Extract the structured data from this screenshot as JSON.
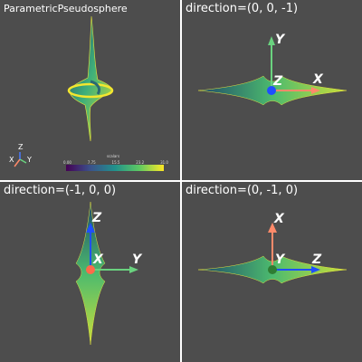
{
  "viewports": [
    {
      "title": "ParametricPseudosphere"
    },
    {
      "title": "direction=(0, 0, -1)"
    },
    {
      "title": "direction=(-1, 0, 0)"
    },
    {
      "title": "direction=(0, -1, 0)"
    }
  ],
  "orientation_marker": {
    "x": "X",
    "y": "Y",
    "z": "Z"
  },
  "scalar_bar": {
    "title": "scalars",
    "ticks": [
      "0.00",
      "7.75",
      "15.5",
      "23.2",
      "31.0"
    ]
  },
  "axes_labels": {
    "vp2": {
      "x": "X",
      "y": "Y",
      "z": "Z"
    },
    "vp3": {
      "x": "X",
      "y": "Y",
      "z": "Z"
    },
    "vp4": {
      "x": "X",
      "y": "Y",
      "z": "Z"
    }
  },
  "colors": {
    "background": "#4d4d4d",
    "x_axis": "#ff8a6a",
    "y_axis": "#6ad27f",
    "z_axis": "#1f4fff",
    "surface_dark": "#1f4a6a",
    "surface_light": "#d7e22f"
  }
}
